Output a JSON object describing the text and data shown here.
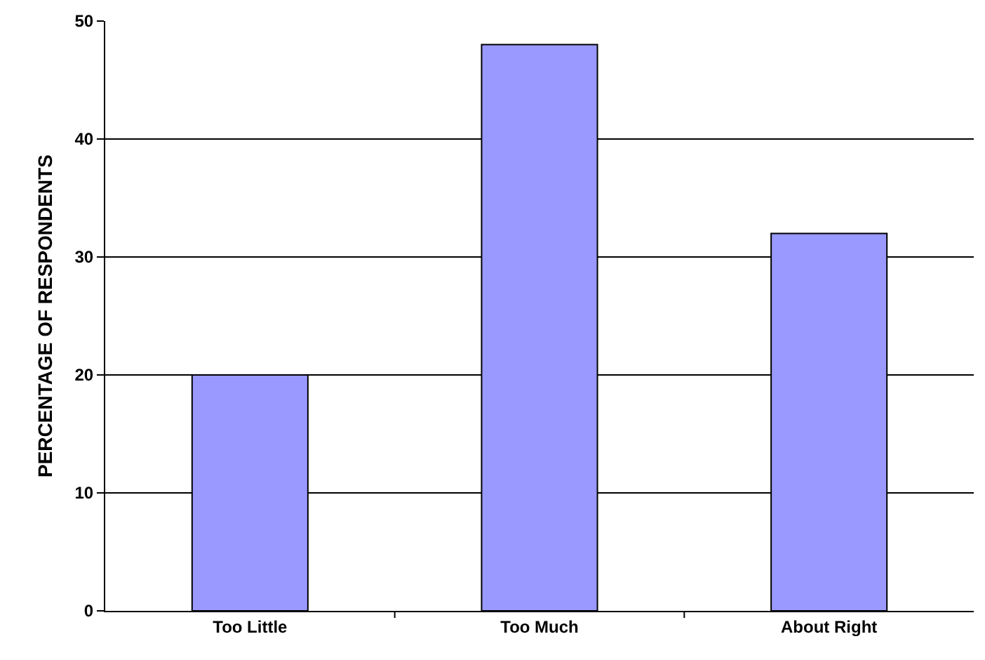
{
  "chart_data": {
    "type": "bar",
    "ylabel": "PERCENTAGE OF RESPONDENTS",
    "categories": [
      "Too Little",
      "Too Much",
      "About Right"
    ],
    "values": [
      20,
      48,
      32
    ],
    "color": "#9999ff",
    "ylim": [
      0,
      50
    ],
    "yticks": [
      0,
      10,
      20,
      30,
      40,
      50
    ],
    "grid": "y"
  }
}
